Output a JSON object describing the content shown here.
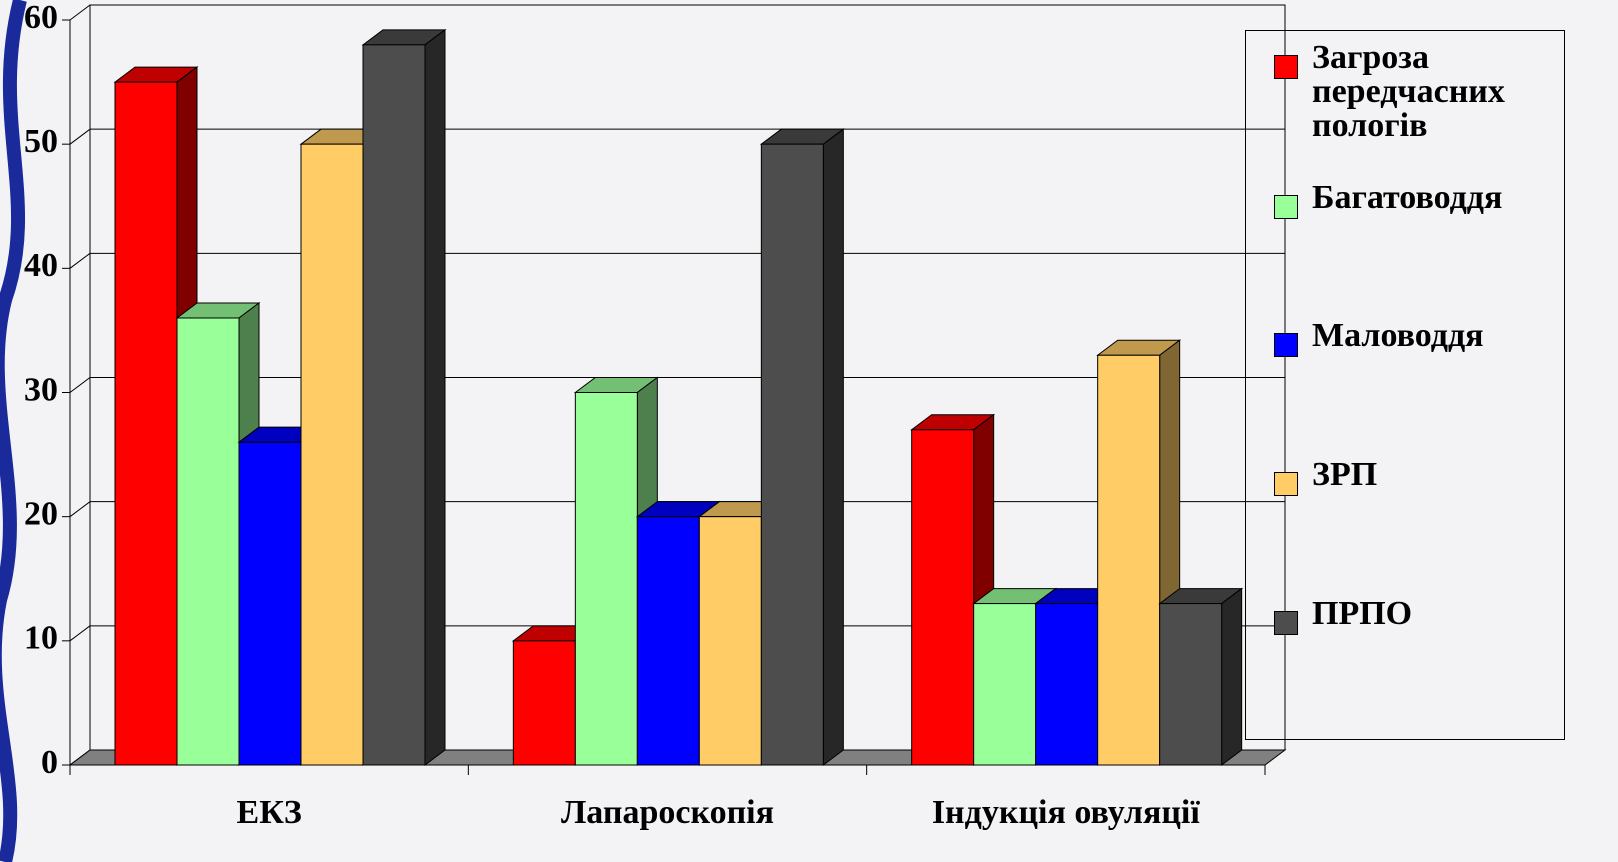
{
  "chart_data": {
    "type": "bar3d",
    "categories": [
      "ЕКЗ",
      "Лапароскопія",
      "Індукція овуляції"
    ],
    "series": [
      {
        "name": "Загроза передчасних пологів",
        "color": "#ff0000",
        "values": [
          55,
          10,
          27
        ]
      },
      {
        "name": "Багатоводдя",
        "color": "#99ff99",
        "values": [
          36,
          30,
          13
        ]
      },
      {
        "name": "Маловоддя",
        "color": "#0000ff",
        "values": [
          26,
          20,
          13
        ]
      },
      {
        "name": "ЗРП",
        "color": "#ffcc66",
        "values": [
          50,
          20,
          33
        ]
      },
      {
        "name": "ПРПО",
        "color": "#4d4d4d",
        "values": [
          58,
          50,
          13
        ]
      }
    ],
    "ylim": [
      0,
      60
    ],
    "yticks": [
      0,
      10,
      20,
      30,
      40,
      50,
      60
    ],
    "grid": true,
    "legend": "right"
  }
}
